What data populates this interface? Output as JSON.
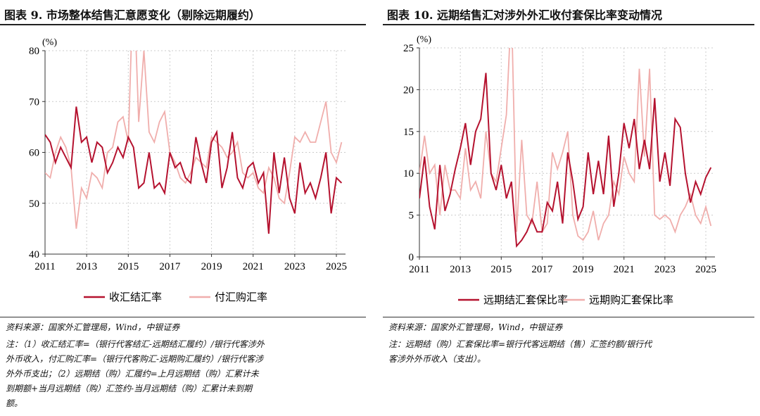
{
  "colors": {
    "dark": "#b5122f",
    "light": "#f0aeac"
  },
  "charts": [
    {
      "title": "图表 9. 市场整体结售汇意愿变化（剔除远期履约）",
      "source": "资料来源：国家外汇管理局，Wind，中银证券",
      "notes": [
        "注：（1）收汇结汇率=（银行代客结汇-远期结汇履约）/银行代客涉外",
        "外币收入，付汇购汇率=（银行代客购汇-远期购汇履约）/银行代客涉",
        "外外币支出；（2）远期结（购）汇履约=上月远期结（购）汇累计未",
        "到期额+当月远期结（购）汇签约-当月远期结（购）汇累计未到期",
        "额。"
      ]
    },
    {
      "title": "图表 10. 远期结售汇对涉外外汇收付套保比率变动情况",
      "source": "资料来源：国家外汇管理局，Wind，中银证券",
      "notes": [
        "注：远期结（购）汇套保比率=银行代客远期结（售）汇签约额/银行代",
        "客涉外外币收入（支出）。"
      ]
    }
  ],
  "chart_data": [
    {
      "type": "line",
      "unit": "(%)",
      "ylim": [
        40,
        80
      ],
      "yticks": [
        40,
        50,
        60,
        70,
        80
      ],
      "xticks": [
        "2011",
        "2013",
        "2015",
        "2017",
        "2019",
        "2021",
        "2023",
        "2025"
      ],
      "grid": true,
      "legend": "bottom",
      "x": [
        "2011-01",
        "2011-04",
        "2011-07",
        "2011-10",
        "2012-01",
        "2012-04",
        "2012-07",
        "2012-10",
        "2013-01",
        "2013-04",
        "2013-07",
        "2013-10",
        "2014-01",
        "2014-04",
        "2014-07",
        "2014-10",
        "2015-01",
        "2015-04",
        "2015-07",
        "2015-10",
        "2016-01",
        "2016-04",
        "2016-07",
        "2016-10",
        "2017-01",
        "2017-04",
        "2017-07",
        "2017-10",
        "2018-01",
        "2018-04",
        "2018-07",
        "2018-10",
        "2019-01",
        "2019-04",
        "2019-07",
        "2019-10",
        "2020-01",
        "2020-04",
        "2020-07",
        "2020-10",
        "2021-01",
        "2021-04",
        "2021-07",
        "2021-10",
        "2022-01",
        "2022-04",
        "2022-07",
        "2022-10",
        "2023-01",
        "2023-04",
        "2023-07",
        "2023-10",
        "2024-01",
        "2024-04",
        "2024-07",
        "2024-10",
        "2025-01",
        "2025-04"
      ],
      "series": [
        {
          "name": "收汇结汇率",
          "color": "dark",
          "values": [
            63.5,
            62,
            58,
            61,
            59,
            57,
            69,
            62,
            63,
            58,
            62,
            61,
            56,
            58,
            61,
            59,
            63,
            61,
            53,
            54,
            60,
            53,
            54,
            52,
            60,
            57,
            58,
            55,
            54,
            63,
            58,
            54,
            62,
            64,
            53,
            57,
            64,
            55,
            53,
            57,
            58,
            54,
            56,
            44,
            60,
            52,
            59,
            51,
            48,
            58,
            52,
            54,
            51,
            55,
            60,
            48,
            55,
            54
          ]
        },
        {
          "name": "付汇购汇率",
          "color": "light",
          "values": [
            56,
            55,
            60,
            63,
            61,
            57,
            45,
            53,
            51,
            56,
            55,
            53,
            60,
            61,
            66,
            67,
            62,
            95,
            66,
            80,
            64,
            62,
            66,
            68,
            60,
            58,
            55,
            54,
            56,
            59,
            58,
            57,
            63,
            62,
            61,
            59,
            60,
            62,
            56,
            55,
            56,
            53,
            52,
            57,
            55,
            51,
            50,
            56,
            63,
            62,
            64,
            62,
            62,
            66,
            70,
            60,
            58,
            62
          ]
        }
      ]
    },
    {
      "type": "line",
      "unit": "(%)",
      "ylim": [
        0,
        25
      ],
      "yticks": [
        0,
        5,
        10,
        15,
        20,
        25
      ],
      "xticks": [
        "2011",
        "2013",
        "2015",
        "2017",
        "2019",
        "2021",
        "2023",
        "2025"
      ],
      "grid": true,
      "legend": "bottom",
      "x": [
        "2011-01",
        "2011-04",
        "2011-07",
        "2011-10",
        "2012-01",
        "2012-04",
        "2012-07",
        "2012-10",
        "2013-01",
        "2013-04",
        "2013-07",
        "2013-10",
        "2014-01",
        "2014-04",
        "2014-07",
        "2014-10",
        "2015-01",
        "2015-04",
        "2015-07",
        "2015-10",
        "2016-01",
        "2016-04",
        "2016-07",
        "2016-10",
        "2017-01",
        "2017-04",
        "2017-07",
        "2017-10",
        "2018-01",
        "2018-04",
        "2018-07",
        "2018-10",
        "2019-01",
        "2019-04",
        "2019-07",
        "2019-10",
        "2020-01",
        "2020-04",
        "2020-07",
        "2020-10",
        "2021-01",
        "2021-04",
        "2021-07",
        "2021-10",
        "2022-01",
        "2022-04",
        "2022-07",
        "2022-10",
        "2023-01",
        "2023-04",
        "2023-07",
        "2023-10",
        "2024-01",
        "2024-04",
        "2024-07",
        "2024-10",
        "2025-01",
        "2025-04"
      ],
      "series": [
        {
          "name": "远期结汇套保比率",
          "color": "dark",
          "values": [
            7,
            12,
            6,
            3.3,
            11,
            5.5,
            7.5,
            10.5,
            13,
            16,
            11,
            15,
            16.5,
            22,
            10,
            8,
            11,
            7,
            9,
            1.3,
            2,
            3,
            4.5,
            3,
            3,
            6.5,
            5.5,
            9,
            4,
            12.5,
            9,
            4.5,
            6,
            12.5,
            7.5,
            11.5,
            7.5,
            14.5,
            6,
            10,
            16,
            13,
            16.5,
            10.5,
            14,
            10.5,
            19,
            9,
            12.5,
            8.5,
            16.5,
            15.5,
            10,
            6.5,
            9,
            7.5,
            9.5,
            10.7
          ]
        },
        {
          "name": "远期购汇套保比率",
          "color": "light",
          "values": [
            10,
            14.5,
            10,
            11,
            5,
            11,
            8,
            8,
            7,
            13,
            8,
            9,
            7,
            15,
            10,
            9,
            13,
            17,
            30,
            3,
            14,
            5,
            4,
            9,
            3,
            4,
            12.5,
            10.5,
            12.5,
            15,
            5,
            2.5,
            2,
            3,
            5.5,
            2,
            4,
            5,
            9,
            7.5,
            12,
            10,
            9,
            22.5,
            12,
            22.5,
            5,
            4.5,
            5,
            4.5,
            3,
            5,
            6,
            7.5,
            5,
            4,
            6,
            3.7
          ]
        }
      ]
    }
  ]
}
